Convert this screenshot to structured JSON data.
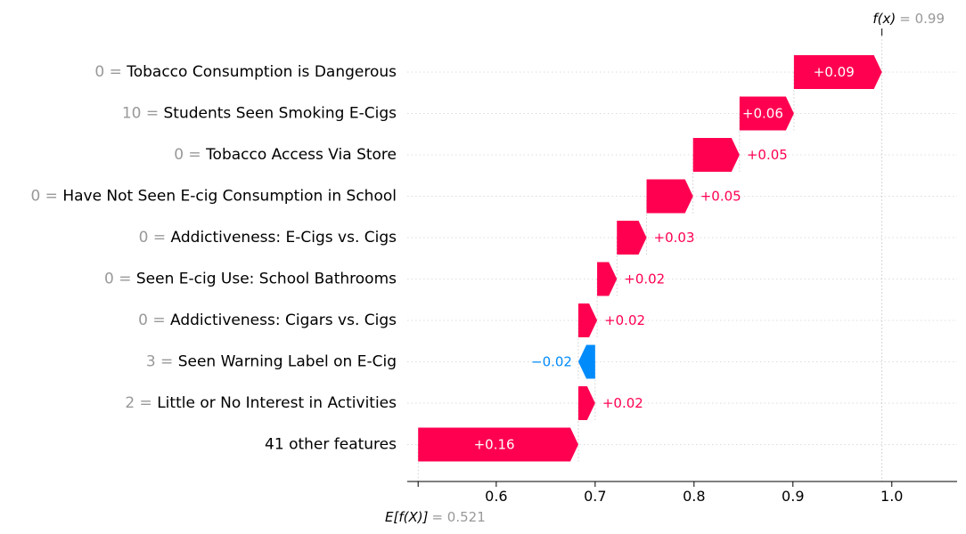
{
  "chart_data": {
    "type": "waterfall",
    "base_value": 0.521,
    "base_label": "E[f(X)]",
    "base_value_text": "0.521",
    "output_value": 0.99,
    "output_label": "f(x)",
    "output_value_text": "0.99",
    "xlim": [
      0.51,
      1.066
    ],
    "ticks": [
      {
        "value": 0.6,
        "label": "0.6"
      },
      {
        "value": 0.7,
        "label": "0.7"
      },
      {
        "value": 0.8,
        "label": "0.8"
      },
      {
        "value": 0.9,
        "label": "0.9"
      },
      {
        "value": 1.0,
        "label": "1.0"
      }
    ],
    "colors": {
      "positive": "#ff0051",
      "negative": "#008bfb",
      "muted": "#999999"
    },
    "features": [
      {
        "value": "0",
        "name": "Tobacco Consumption is Dangerous",
        "contribution": 0.09,
        "label": "+0.09"
      },
      {
        "value": "10",
        "name": "Students Seen Smoking E-Cigs",
        "contribution": 0.06,
        "label": "+0.06"
      },
      {
        "value": "0",
        "name": "Tobacco Access Via Store",
        "contribution": 0.05,
        "label": "+0.05"
      },
      {
        "value": "0",
        "name": "Have Not Seen E-cig Consumption in School",
        "contribution": 0.05,
        "label": "+0.05"
      },
      {
        "value": "0",
        "name": "Addictiveness: E-Cigs vs. Cigs",
        "contribution": 0.03,
        "label": "+0.03"
      },
      {
        "value": "0",
        "name": "Seen E-cig Use: School Bathrooms",
        "contribution": 0.02,
        "label": "+0.02"
      },
      {
        "value": "0",
        "name": "Addictiveness: Cigars vs. Cigs",
        "contribution": 0.02,
        "label": "+0.02"
      },
      {
        "value": "3",
        "name": "Seen Warning Label on E-Cig",
        "contribution": -0.02,
        "label": "−0.02"
      },
      {
        "value": "2",
        "name": "Little or No Interest in Activities",
        "contribution": 0.02,
        "label": "+0.02"
      },
      {
        "value": "",
        "name": "41 other features",
        "contribution": 0.16,
        "label": "+0.16"
      }
    ],
    "segments": [
      {
        "start": 0.901,
        "end": 0.99
      },
      {
        "start": 0.846,
        "end": 0.901
      },
      {
        "start": 0.799,
        "end": 0.846
      },
      {
        "start": 0.752,
        "end": 0.799
      },
      {
        "start": 0.722,
        "end": 0.752
      },
      {
        "start": 0.702,
        "end": 0.722
      },
      {
        "start": 0.683,
        "end": 0.702
      },
      {
        "start": 0.7,
        "end": 0.683
      },
      {
        "start": 0.683,
        "end": 0.7
      },
      {
        "start": 0.521,
        "end": 0.683
      }
    ]
  }
}
